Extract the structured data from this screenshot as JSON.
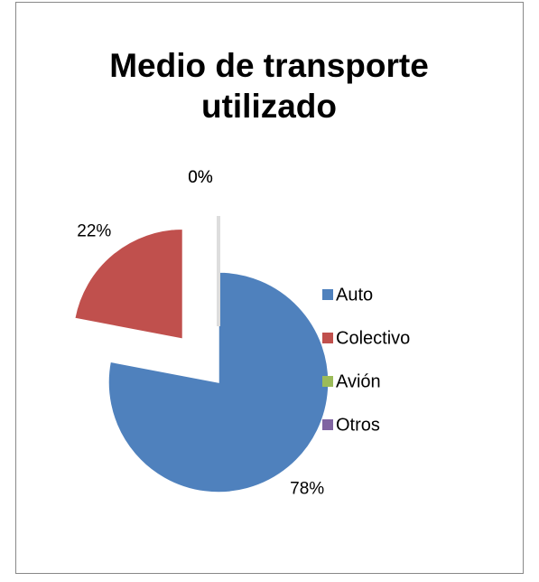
{
  "chart_data": {
    "type": "pie",
    "title": "Medio de transporte utilizado",
    "categories": [
      "Auto",
      "Colectivo",
      "Avión",
      "Otros"
    ],
    "values": [
      78,
      22,
      0,
      0
    ],
    "value_labels": [
      "78%",
      "22%",
      "0%",
      "0%"
    ],
    "colors": [
      "#4f81bd",
      "#c0504d",
      "#9bbb59",
      "#8064a2"
    ],
    "legend": "right"
  }
}
